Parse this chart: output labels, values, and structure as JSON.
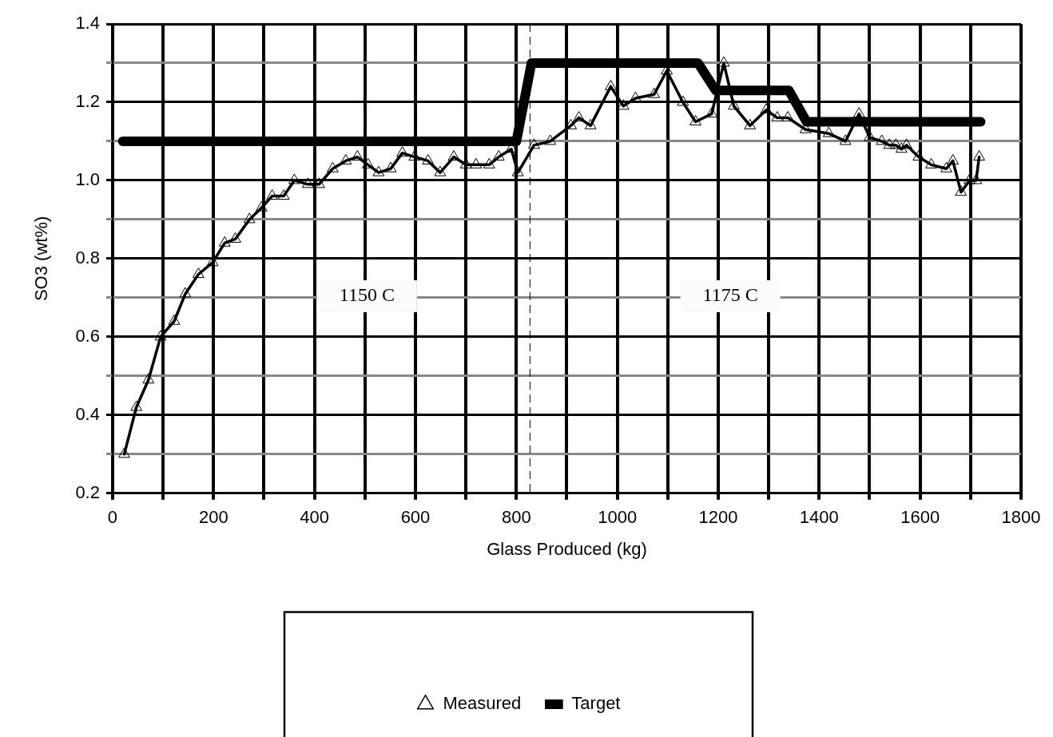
{
  "chart_data": {
    "type": "line",
    "xlabel": "Glass Produced (kg)",
    "ylabel": "SO3 (wt%)",
    "xlim": [
      0,
      1800
    ],
    "xticks": [
      0,
      {
        "value": 100,
        "label": null
      },
      200,
      {
        "value": 300,
        "label": null
      },
      400,
      {
        "value": 500,
        "label": null
      },
      600,
      {
        "value": 700,
        "label": null
      },
      800,
      {
        "value": 900,
        "label": null
      },
      1000,
      {
        "value": 1100,
        "label": null
      },
      1200,
      {
        "value": 1300,
        "label": null
      },
      1400,
      {
        "value": 1500,
        "label": null
      },
      1600,
      {
        "value": 1700,
        "label": null
      },
      1800
    ],
    "ylim": [
      0.2,
      1.4
    ],
    "yticks": [
      {
        "value": 0.2,
        "label": "0.2"
      },
      {
        "value": 0.3,
        "label": null
      },
      {
        "value": 0.4,
        "label": "0.4"
      },
      {
        "value": 0.5,
        "label": null
      },
      {
        "value": 0.6,
        "label": "0.6"
      },
      {
        "value": 0.7,
        "label": null
      },
      {
        "value": 0.8,
        "label": "0.8"
      },
      {
        "value": 0.9,
        "label": null
      },
      {
        "value": 1.0,
        "label": "1.0"
      },
      {
        "value": 1.1,
        "label": null
      },
      {
        "value": 1.2,
        "label": "1.2"
      },
      {
        "value": 1.3,
        "label": null
      },
      {
        "value": 1.4,
        "label": "1.4"
      }
    ],
    "grid": true,
    "legend": "bottom",
    "series": [
      {
        "name": "Measured",
        "color": "#000000",
        "marker": "triangle",
        "x": [
          23,
          47,
          71,
          95,
          122,
          144,
          170,
          198,
          222,
          243,
          271,
          295,
          316,
          339,
          360,
          387,
          409,
          436,
          462,
          485,
          506,
          527,
          551,
          574,
          598,
          625,
          649,
          676,
          700,
          720,
          746,
          765,
          790,
          803,
          835,
          867,
          908,
          924,
          947,
          987,
          1012,
          1036,
          1073,
          1098,
          1130,
          1155,
          1187,
          1211,
          1231,
          1263,
          1295,
          1317,
          1338,
          1373,
          1419,
          1452,
          1479,
          1500,
          1524,
          1539,
          1552,
          1563,
          1573,
          1597,
          1622,
          1652,
          1665,
          1681,
          1698,
          1711,
          1717
        ],
        "values": [
          0.3,
          0.42,
          0.49,
          0.6,
          0.64,
          0.71,
          0.76,
          0.79,
          0.84,
          0.85,
          0.9,
          0.93,
          0.96,
          0.96,
          1.0,
          0.99,
          0.99,
          1.03,
          1.05,
          1.06,
          1.04,
          1.02,
          1.03,
          1.07,
          1.06,
          1.05,
          1.02,
          1.06,
          1.04,
          1.04,
          1.04,
          1.06,
          1.08,
          1.02,
          1.09,
          1.1,
          1.14,
          1.16,
          1.14,
          1.24,
          1.19,
          1.21,
          1.22,
          1.28,
          1.2,
          1.15,
          1.17,
          1.3,
          1.19,
          1.14,
          1.18,
          1.16,
          1.16,
          1.13,
          1.12,
          1.1,
          1.17,
          1.11,
          1.1,
          1.09,
          1.09,
          1.08,
          1.09,
          1.06,
          1.04,
          1.03,
          1.05,
          0.97,
          1.0,
          1.0,
          1.06
        ]
      },
      {
        "name": "Target",
        "color": "#000000",
        "marker": "none",
        "x": [
          20,
          800,
          830,
          1160,
          1195,
          1340,
          1375,
          1720
        ],
        "values": [
          1.1,
          1.1,
          1.3,
          1.3,
          1.23,
          1.23,
          1.15,
          1.15
        ]
      }
    ],
    "ref_lines": [
      {
        "axis": "x",
        "value": 827,
        "line_style": "dashed",
        "color": "#000000"
      }
    ],
    "annotations": [
      "1150 C",
      "1175 C"
    ]
  }
}
